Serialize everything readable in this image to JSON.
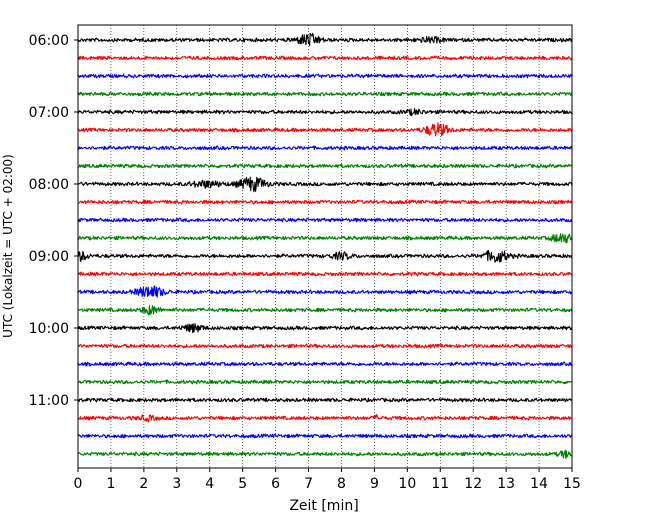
{
  "chart_data": {
    "type": "line",
    "subtype": "helicorder-seismogram",
    "title": "",
    "xlabel": "Zeit  [min]",
    "ylabel": "UTC (Lokalzeit = UTC + 02:00)",
    "xlim": [
      0,
      15
    ],
    "x_ticks": [
      0,
      1,
      2,
      3,
      4,
      5,
      6,
      7,
      8,
      9,
      10,
      11,
      12,
      13,
      14,
      15
    ],
    "x_tick_labels": [
      "0",
      "1",
      "2",
      "3",
      "4",
      "5",
      "6",
      "7",
      "8",
      "9",
      "10",
      "11",
      "12",
      "13",
      "14",
      "15"
    ],
    "y_tick_labels": [
      "06:00",
      "07:00",
      "08:00",
      "09:00",
      "10:00",
      "11:00"
    ],
    "trace_interval_minutes": 15,
    "vertical_grid": "dotted",
    "colors": [
      "#000000",
      "#ff0000",
      "#0000ff",
      "#008000"
    ],
    "traces": [
      {
        "start": "06:00",
        "color": "#000000",
        "events": [
          {
            "t": 7.0,
            "amp": 0.55,
            "width": 0.7
          },
          {
            "t": 10.7,
            "amp": 0.2,
            "width": 0.8
          }
        ]
      },
      {
        "start": "06:15",
        "color": "#ff0000",
        "events": []
      },
      {
        "start": "06:30",
        "color": "#0000ff",
        "events": []
      },
      {
        "start": "06:45",
        "color": "#008000",
        "events": []
      },
      {
        "start": "07:00",
        "color": "#000000",
        "events": [
          {
            "t": 10.2,
            "amp": 0.2,
            "width": 0.6
          }
        ]
      },
      {
        "start": "07:15",
        "color": "#ff0000",
        "events": [
          {
            "t": 10.9,
            "amp": 0.6,
            "width": 0.7
          }
        ]
      },
      {
        "start": "07:30",
        "color": "#0000ff",
        "events": []
      },
      {
        "start": "07:45",
        "color": "#008000",
        "events": []
      },
      {
        "start": "08:00",
        "color": "#000000",
        "events": [
          {
            "t": 3.9,
            "amp": 0.3,
            "width": 0.9
          },
          {
            "t": 5.3,
            "amp": 0.65,
            "width": 0.8
          }
        ]
      },
      {
        "start": "08:15",
        "color": "#ff0000",
        "events": []
      },
      {
        "start": "08:30",
        "color": "#0000ff",
        "events": []
      },
      {
        "start": "08:45",
        "color": "#008000",
        "events": [
          {
            "t": 14.7,
            "amp": 0.45,
            "width": 0.6
          }
        ]
      },
      {
        "start": "09:00",
        "color": "#000000",
        "events": [
          {
            "t": 0.1,
            "amp": 0.4,
            "width": 0.4
          },
          {
            "t": 8.0,
            "amp": 0.3,
            "width": 0.6
          },
          {
            "t": 12.7,
            "amp": 0.6,
            "width": 0.7
          }
        ]
      },
      {
        "start": "09:15",
        "color": "#ff0000",
        "events": []
      },
      {
        "start": "09:30",
        "color": "#0000ff",
        "events": [
          {
            "t": 2.2,
            "amp": 0.55,
            "width": 0.8
          }
        ]
      },
      {
        "start": "09:45",
        "color": "#008000",
        "events": [
          {
            "t": 2.2,
            "amp": 0.4,
            "width": 0.5
          }
        ]
      },
      {
        "start": "10:00",
        "color": "#000000",
        "events": [
          {
            "t": 3.5,
            "amp": 0.35,
            "width": 0.6
          }
        ]
      },
      {
        "start": "10:15",
        "color": "#ff0000",
        "events": []
      },
      {
        "start": "10:30",
        "color": "#0000ff",
        "events": []
      },
      {
        "start": "10:45",
        "color": "#008000",
        "events": []
      },
      {
        "start": "11:00",
        "color": "#000000",
        "events": []
      },
      {
        "start": "11:15",
        "color": "#ff0000",
        "events": [
          {
            "t": 2.1,
            "amp": 0.2,
            "width": 0.5
          },
          {
            "t": 9.1,
            "amp": 0.2,
            "width": 0.2
          }
        ]
      },
      {
        "start": "11:30",
        "color": "#0000ff",
        "events": []
      },
      {
        "start": "11:45",
        "color": "#008000",
        "events": [
          {
            "t": 14.8,
            "amp": 0.3,
            "width": 0.4
          }
        ]
      }
    ]
  }
}
